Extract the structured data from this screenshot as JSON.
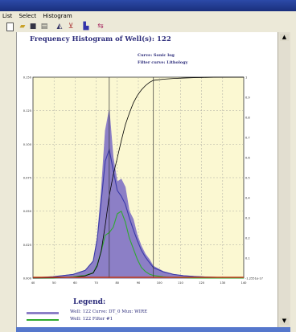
{
  "menu": [
    "List",
    "Select",
    "Histogram"
  ],
  "toolbar": {
    "icons": [
      "new-icon",
      "open-icon",
      "save-icon",
      "print-icon",
      "chart-icon",
      "filter-icon",
      "histogram-icon",
      "export-icon"
    ]
  },
  "histogram": {
    "title": "Frequency Histogram of Well(s): 122",
    "curve_label": "Curve: Sonic log",
    "filter_label": "Filter curve: Lithology"
  },
  "legend": {
    "title": "Legend:",
    "entries": [
      {
        "label": "Well: 122 Curve: DT_0  Mux: WIRE",
        "color": "#8c7fc6"
      },
      {
        "label": "Well: 122 Filter #1",
        "color": "#2faa2f"
      }
    ]
  },
  "chart_data": {
    "type": "area",
    "x_ticks": [
      "40",
      "50",
      "60",
      "70",
      "80",
      "90",
      "100",
      "110",
      "120",
      "130",
      "140"
    ],
    "y_ticks_left": [
      "0.000",
      "0.025",
      "0.050",
      "0.075",
      "0.100",
      "0.125",
      "0.150"
    ],
    "y_ticks_right": [
      "-1.2551e-17",
      "0.1",
      "0.2",
      "0.3",
      "0.4",
      "0.5",
      "0.6",
      "0.7",
      "0.8",
      "0.9",
      "1"
    ],
    "xlim": [
      40,
      145
    ],
    "ylim": [
      0,
      0.15
    ],
    "colors": {
      "bg": "#fbf8d2",
      "total": "#8c7fc6",
      "filter": "#2faa2f",
      "curve": "#3a3aa8",
      "cumulative": "#000000",
      "baseline": "#c03a1a"
    },
    "series": [
      {
        "name": "Well: 122 Curve: DT_0  Mux: WIRE",
        "x": [
          40,
          50,
          60,
          66,
          70,
          72,
          74,
          76,
          78,
          80,
          82,
          84,
          86,
          88,
          90,
          92,
          94,
          96,
          98,
          100,
          105,
          110,
          115,
          120,
          125,
          130,
          140,
          145
        ],
        "values": [
          0,
          0.001,
          0.003,
          0.006,
          0.012,
          0.03,
          0.065,
          0.11,
          0.126,
          0.09,
          0.072,
          0.074,
          0.068,
          0.05,
          0.044,
          0.032,
          0.024,
          0.018,
          0.014,
          0.009,
          0.005,
          0.003,
          0.002,
          0.0015,
          0.001,
          0.0008,
          0.0003,
          0
        ]
      },
      {
        "name": "Well: 122 Filter #1",
        "x": [
          40,
          50,
          60,
          66,
          70,
          72,
          74,
          76,
          78,
          80,
          82,
          84,
          86,
          88,
          90,
          92,
          94,
          96,
          98,
          100,
          105,
          110,
          115,
          120,
          125,
          130,
          140,
          145
        ],
        "values": [
          0,
          0,
          0.001,
          0.002,
          0.004,
          0.01,
          0.02,
          0.032,
          0.034,
          0.038,
          0.048,
          0.05,
          0.042,
          0.03,
          0.022,
          0.014,
          0.008,
          0.005,
          0.003,
          0.002,
          0.001,
          0.0005,
          0.0003,
          0,
          0,
          0,
          0,
          0
        ]
      }
    ]
  }
}
